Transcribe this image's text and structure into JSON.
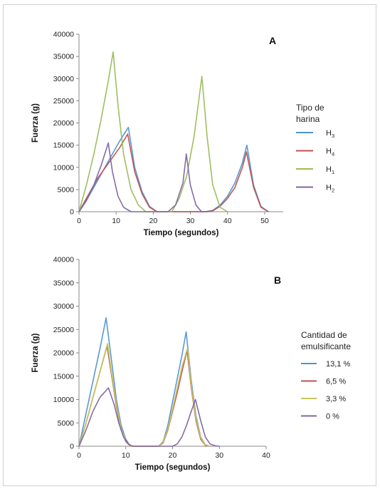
{
  "chart_data": [
    {
      "type": "line",
      "panel_label": "A",
      "xlabel": "Tiempo (segundos)",
      "ylabel": "Fuerza (g)",
      "xlim": [
        0,
        55
      ],
      "ylim": [
        0,
        40000
      ],
      "xticks": [
        "0",
        "10",
        "20",
        "30",
        "40",
        "50"
      ],
      "yticks": [
        "0",
        "5000",
        "10000",
        "15000",
        "20000",
        "25000",
        "30000",
        "35000",
        "40000"
      ],
      "legend_title": [
        "Tipo de",
        "harina"
      ],
      "legend_position": "right",
      "series": [
        {
          "name": "H3",
          "label_base": "H",
          "label_sub": "3",
          "color": "#4f94d0",
          "x": [
            0,
            2,
            5,
            8,
            11,
            13.3,
            15,
            17,
            19,
            21,
            24,
            27,
            30,
            34,
            36,
            38,
            40,
            42,
            44,
            45.2,
            47,
            49,
            51
          ],
          "y": [
            0,
            2500,
            7000,
            11500,
            16000,
            19000,
            10000,
            4500,
            1200,
            0,
            0,
            0,
            0,
            0,
            300,
            1500,
            3500,
            6500,
            11000,
            15000,
            6000,
            1200,
            0
          ]
        },
        {
          "name": "H4",
          "label_base": "H",
          "label_sub": "4",
          "color": "#c0504d",
          "x": [
            0,
            2,
            5,
            8,
            11,
            13.1,
            15,
            17,
            19,
            21,
            24,
            27,
            30,
            34,
            36,
            38,
            40,
            42,
            44,
            45.1,
            47,
            49,
            51
          ],
          "y": [
            0,
            3000,
            7500,
            11000,
            14500,
            17500,
            9000,
            4000,
            1000,
            0,
            0,
            0,
            0,
            0,
            200,
            1200,
            3000,
            5500,
            10000,
            13500,
            5500,
            1000,
            0
          ]
        },
        {
          "name": "H1",
          "label_base": "H",
          "label_sub": "1",
          "color": "#9bbb59",
          "x": [
            0,
            2,
            4,
            6,
            8,
            9.2,
            10.5,
            12,
            14,
            16,
            18,
            20,
            22,
            25,
            27,
            29,
            31,
            33.1,
            34.5,
            36,
            38,
            40
          ],
          "y": [
            0,
            6000,
            13000,
            21000,
            30000,
            36000,
            24000,
            13000,
            5000,
            1500,
            0,
            0,
            0,
            0,
            3000,
            8000,
            17000,
            30500,
            17000,
            6000,
            1000,
            0
          ]
        },
        {
          "name": "H2",
          "label_base": "H",
          "label_sub": "2",
          "color": "#8064a2",
          "x": [
            0,
            2,
            4,
            6,
            7.9,
            9,
            10.5,
            12,
            14,
            16,
            18,
            20,
            22,
            24,
            26,
            28,
            28.9,
            30,
            31.5,
            33,
            35
          ],
          "y": [
            0,
            2500,
            6000,
            10500,
            15500,
            9000,
            3500,
            1000,
            0,
            0,
            0,
            0,
            0,
            0,
            1500,
            6500,
            13000,
            6000,
            1500,
            0,
            0
          ]
        }
      ]
    },
    {
      "type": "line",
      "panel_label": "B",
      "xlabel": "Tiempo (segundos)",
      "ylabel": "Fuerza (g)",
      "xlim": [
        0,
        40
      ],
      "ylim": [
        0,
        40000
      ],
      "xticks": [
        "0",
        "10",
        "20",
        "30",
        "40"
      ],
      "yticks": [
        "0",
        "5000",
        "10000",
        "15000",
        "20000",
        "25000",
        "30000",
        "35000",
        "40000"
      ],
      "legend_title": [
        "Cantidad de",
        "emulsificante"
      ],
      "legend_position": "right",
      "series": [
        {
          "name": "13,1 %",
          "color": "#4f94d0",
          "x": [
            0,
            1.5,
            3,
            4.5,
            5.8,
            7,
            8,
            9,
            10,
            11,
            13,
            15,
            17,
            18,
            19,
            20,
            21,
            22,
            22.9,
            24,
            25,
            26,
            27,
            28
          ],
          "y": [
            0,
            7000,
            14000,
            21000,
            27500,
            18000,
            10000,
            4500,
            1500,
            0,
            0,
            0,
            0,
            1000,
            4500,
            9500,
            14500,
            19500,
            24500,
            14000,
            6500,
            2000,
            300,
            0
          ]
        },
        {
          "name": "6,5 %",
          "color": "#c0504d",
          "x": [
            0,
            1.5,
            3,
            4.5,
            6,
            7,
            8,
            9,
            10,
            11,
            13,
            15,
            17,
            18,
            19,
            20,
            21,
            22,
            23.1,
            24,
            25,
            26,
            27,
            28
          ],
          "y": [
            0,
            5000,
            10500,
            16000,
            21500,
            15000,
            8500,
            3500,
            1000,
            0,
            0,
            0,
            0,
            700,
            3500,
            7500,
            11500,
            16000,
            20500,
            12500,
            5500,
            1500,
            200,
            0
          ]
        },
        {
          "name": "3,3 %",
          "color": "#c6c65a",
          "x": [
            0,
            1.5,
            3,
            4.5,
            6.1,
            7,
            8,
            9,
            10,
            11,
            13,
            15,
            17,
            18,
            19,
            20,
            21,
            22,
            23.2,
            24,
            25,
            26,
            27,
            28
          ],
          "y": [
            0,
            5000,
            10500,
            16000,
            22000,
            15500,
            9000,
            3800,
            1200,
            0,
            0,
            0,
            0,
            800,
            3800,
            8000,
            12500,
            17000,
            21000,
            13000,
            6000,
            1800,
            300,
            0
          ]
        },
        {
          "name": "0 %",
          "color": "#8064a2",
          "x": [
            0,
            1.5,
            3,
            4.5,
            6.3,
            7.5,
            8.5,
            9.5,
            10.5,
            11.5,
            13,
            15,
            18,
            20,
            21,
            22,
            23,
            24,
            24.9,
            26,
            27,
            28,
            29,
            30
          ],
          "y": [
            0,
            3500,
            7500,
            10500,
            12500,
            9000,
            5000,
            2000,
            500,
            0,
            0,
            0,
            0,
            0,
            500,
            2000,
            4500,
            7500,
            10000,
            5500,
            2000,
            500,
            100,
            0
          ]
        }
      ]
    }
  ]
}
